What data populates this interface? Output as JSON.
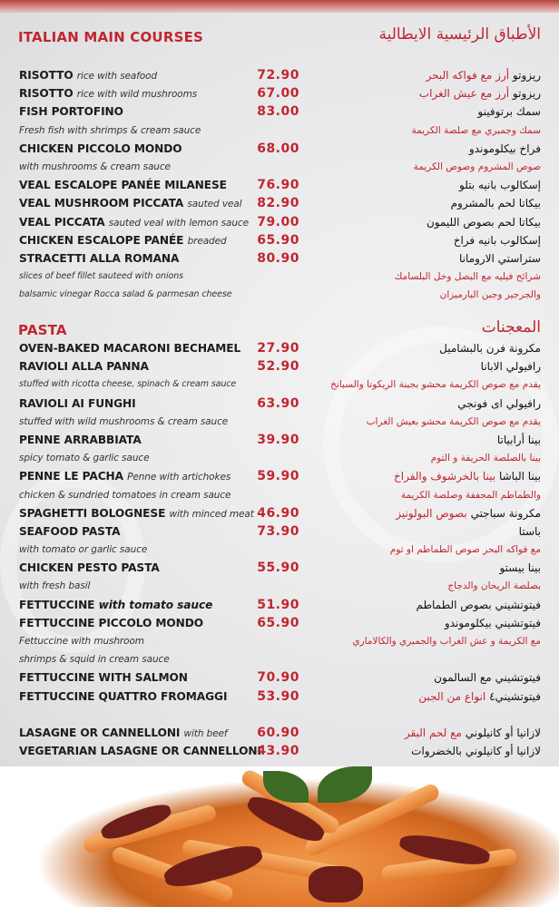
{
  "main": {
    "title_en": "ITALIAN MAIN COURSES",
    "title_ar": "الأطباق الرئيسية الايطالية",
    "rows": [
      {
        "en": "RISOTTO",
        "en_d": "rice with seafood",
        "price": "72.90",
        "ar": "ريزوتو",
        "ar_d": "أرز مع فواكه البحر"
      },
      {
        "en": "RISOTTO",
        "en_d": "rice with wild mushrooms",
        "price": "67.00",
        "ar": "ريزوتو",
        "ar_d": "أرز مع عيش الغراب"
      },
      {
        "en": "FISH PORTOFINO",
        "price": "83.00",
        "ar": "سمك برتوفينو"
      },
      {
        "desc": true,
        "en": "Fresh fish with shrimps & cream sauce",
        "ar": "سمك وجمبري مع صلصة الكريمة"
      },
      {
        "en": "CHICKEN PICCOLO MONDO",
        "price": "68.00",
        "ar": "فراخ بيكلوموندو"
      },
      {
        "desc": true,
        "en": "with mushrooms & cream sauce",
        "ar": "صوص المشروم وصوص الكريمة"
      },
      {
        "en": "VEAL ESCALOPE PANÉE MILANESE",
        "price": "76.90",
        "ar": "إسكالوب بانيه بتلو"
      },
      {
        "en": "VEAL MUSHROOM PICCATA",
        "en_d": "sauted veal",
        "price": "82.90",
        "ar": "بيكاتا لحم بالمشروم"
      },
      {
        "en": "VEAL PICCATA",
        "en_d": "sauted veal with lemon sauce",
        "price": "79.00",
        "ar": "بيكاتا لحم بصوص الليمون"
      },
      {
        "en": "CHICKEN ESCALOPE PANÉE",
        "en_d": "breaded",
        "price": "65.90",
        "ar": "إسكالوب بانيه فراخ"
      },
      {
        "en": "STRACETTI ALLA ROMANA",
        "price": "80.90",
        "ar": "ستراستي الارومانا"
      },
      {
        "desc": true,
        "small": true,
        "en": "slices of beef fillet sauteed with onions",
        "ar": "شرائح فيليه مع البصل وخل البلسامك"
      },
      {
        "desc": true,
        "small": true,
        "en": "balsamic vinegar Rocca salad & parmesan cheese",
        "ar": "والجرجير وجبن البارميزان"
      }
    ]
  },
  "pasta": {
    "title_en": "PASTA",
    "title_ar": "المعجنات",
    "rows": [
      {
        "en": "OVEN-BAKED MACARONI BECHAMEL",
        "price": "27.90",
        "ar": "مكرونة فرن بالبشاميل"
      },
      {
        "en": "RAVIOLI ALLA PANNA",
        "price": "52.90",
        "ar": "رافيولي الابانا"
      },
      {
        "desc": true,
        "small": true,
        "en": "stuffed with ricotta cheese, spinach & cream sauce",
        "ar": "يقدم مع صوص الكريمة محشو بجبنة الريكوتا والسبانخ"
      },
      {
        "en": "RAVIOLI AI FUNGHI",
        "price": "63.90",
        "ar": "رافيولي اى فونجي"
      },
      {
        "desc": true,
        "en": "stuffed with wild mushrooms & cream sauce",
        "ar": "يقدم مع صوص الكريمة محشو بعيش الغراب"
      },
      {
        "en": "PENNE ARRABBIATA",
        "price": "39.90",
        "ar": "بينا أرابياتا"
      },
      {
        "desc": true,
        "en": "spicy tomato & garlic sauce",
        "ar": "بينا بالصلصة الحريفة و الثوم"
      },
      {
        "en": "PENNE LE PACHA",
        "en_d": "Penne with artichokes",
        "price": "59.90",
        "ar": "بينا الباشا",
        "ar_d": "بينا بالخرشوف والفراخ"
      },
      {
        "desc": true,
        "en": "chicken & sundried tomatoes in cream sauce",
        "ar": "والطماطم المجففة وصلصة الكريمة"
      },
      {
        "en": "SPAGHETTI BOLOGNESE",
        "en_d": "with minced meat",
        "price": "46.90",
        "ar": "مكرونة سباجتي",
        "ar_d": "بصوص البولونيز"
      },
      {
        "en": "SEAFOOD PASTA",
        "price": "73.90",
        "ar": "باستا"
      },
      {
        "desc": true,
        "en": "with tomato or garlic sauce",
        "ar": "مع فواكه البحر صوص الطماطم او ثوم"
      },
      {
        "en": "CHICKEN PESTO PASTA",
        "price": "55.90",
        "ar": "بينا بيستو"
      },
      {
        "desc": true,
        "en": "with fresh basil",
        "ar": "بصلصة الريحان والدجاج"
      },
      {
        "en": "FETTUCCINE",
        "en_d_bold": "with tomato sauce",
        "price": "51.90",
        "ar": "فيتوتشيني بصوص الطماطم"
      },
      {
        "en": "FETTUCCINE PICCOLO MONDO",
        "price": "65.90",
        "ar": "فيتوتشيني بيكلوموندو"
      },
      {
        "desc": true,
        "en": "Fettuccine with mushroom",
        "ar": "مع الكريمة و عش الغراب والجمبري والكالاماري"
      },
      {
        "desc": true,
        "en": " shrimps & squid in cream sauce",
        "ar": ""
      },
      {
        "en": "FETTUCCINE WITH SALMON",
        "price": "70.90",
        "ar": "فيتوتشيني مع السالمون"
      },
      {
        "en": "FETTUCCINE QUATTRO FROMAGGI",
        "price": "53.90",
        "ar": "فيتوتشيني٤",
        "ar_d": "انواع من الجبن"
      },
      {
        "gap": true
      },
      {
        "en": "LASAGNE OR CANNELLONI",
        "en_d": "with beef",
        "price": "60.90",
        "ar": "لازانيا أو كانيلوني",
        "ar_d": "مع لحم البقر"
      },
      {
        "en": "VEGETARIAN LASAGNE OR CANNELLONI",
        "price": "43.90",
        "ar": "لازانيا أو كانيلوني بالخضروات"
      }
    ]
  },
  "colors": {
    "accent": "#c0262f",
    "text": "#1c1c1c"
  }
}
